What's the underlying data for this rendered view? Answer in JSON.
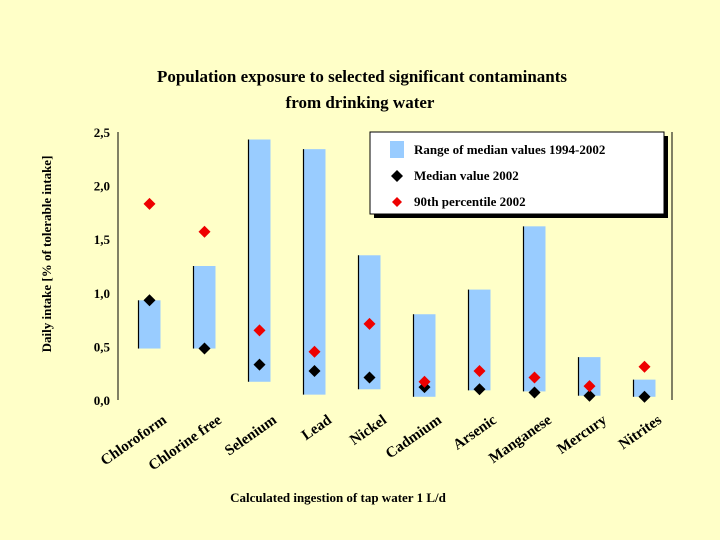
{
  "chart_data": {
    "type": "range-bar-with-markers",
    "title_lines": [
      "Population exposure to selected significant contaminants",
      "from drinking water"
    ],
    "ylabel": "Daily intake [% of tolerable intake]",
    "xlabel": "Calculated ingestion of tap water 1 L/d",
    "ylim": [
      0,
      2.5
    ],
    "yticks": [
      "0,0",
      "0,5",
      "1,0",
      "1,5",
      "2,0",
      "2,5"
    ],
    "ytick_values": [
      0,
      0.5,
      1.0,
      1.5,
      2.0,
      2.5
    ],
    "categories": [
      "Chloroform",
      "Chlorine free",
      "Selenium",
      "Lead",
      "Nickel",
      "Cadmium",
      "Arsenic",
      "Manganese",
      "Mercury",
      "Nitrites"
    ],
    "series": [
      {
        "name": "Range of median values 1994-2002",
        "kind": "range",
        "low": [
          0.48,
          0.48,
          0.17,
          0.05,
          0.1,
          0.03,
          0.09,
          0.08,
          0.04,
          0.03
        ],
        "high": [
          0.93,
          1.25,
          2.43,
          2.34,
          1.35,
          0.8,
          1.03,
          1.62,
          0.4,
          0.19
        ],
        "color": "#99ccff"
      },
      {
        "name": "Median value 2002",
        "kind": "marker",
        "values": [
          0.93,
          0.48,
          0.33,
          0.27,
          0.21,
          0.12,
          0.1,
          0.07,
          0.04,
          0.03
        ],
        "color": "#000000"
      },
      {
        "name": "90th percentile 2002",
        "kind": "marker",
        "values": [
          1.83,
          1.57,
          0.65,
          0.45,
          0.71,
          0.17,
          0.27,
          0.21,
          0.13,
          0.31
        ],
        "color": "#ee0000"
      }
    ],
    "legend_position": "top-right"
  }
}
